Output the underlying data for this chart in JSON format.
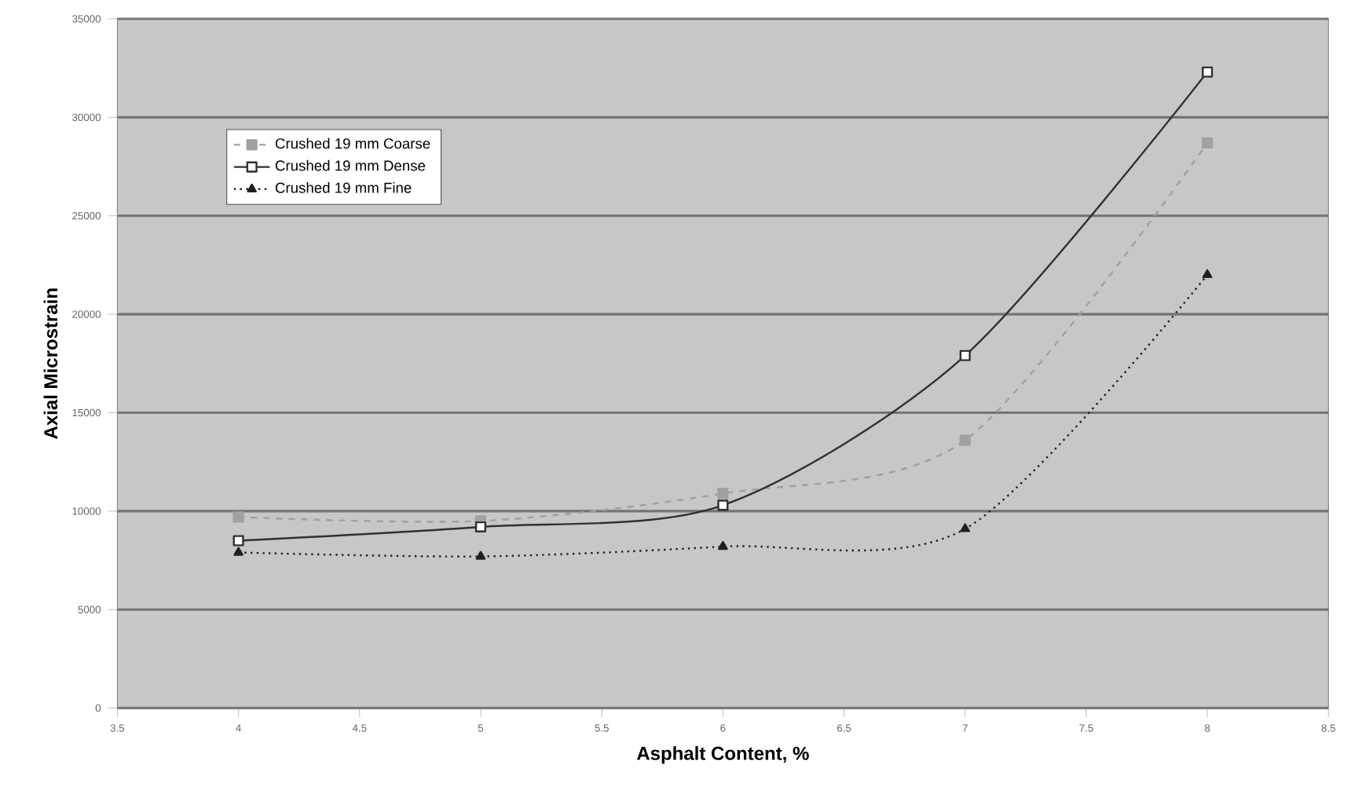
{
  "chart_data": {
    "type": "line",
    "xlabel": "Asphalt Content, %",
    "ylabel": "Axial Microstrain",
    "x": [
      4,
      5,
      6,
      7,
      8
    ],
    "series": [
      {
        "name": "Crushed 19 mm Coarse",
        "color": "#a0a0a0",
        "marker": "square",
        "line_style": "dashed",
        "values": [
          9700,
          9500,
          10900,
          13600,
          28700
        ]
      },
      {
        "name": "Crushed 19 mm Dense",
        "color": "#303030",
        "marker": "square",
        "line_style": "solid",
        "values": [
          8500,
          9200,
          10300,
          17900,
          32300
        ]
      },
      {
        "name": "Crushed 19 mm Fine",
        "color": "#202020",
        "marker": "triangle",
        "line_style": "dotted",
        "values": [
          7900,
          7700,
          8200,
          9100,
          22000
        ]
      }
    ],
    "xlim": [
      3.5,
      8.5
    ],
    "xticks": [
      3.5,
      4,
      4.5,
      5,
      5.5,
      6,
      6.5,
      7,
      7.5,
      8,
      8.5
    ],
    "ylim": [
      0,
      35000
    ],
    "yticks": [
      0,
      5000,
      10000,
      15000,
      20000,
      25000,
      30000,
      35000
    ],
    "grid": "y",
    "legend": "top left"
  }
}
